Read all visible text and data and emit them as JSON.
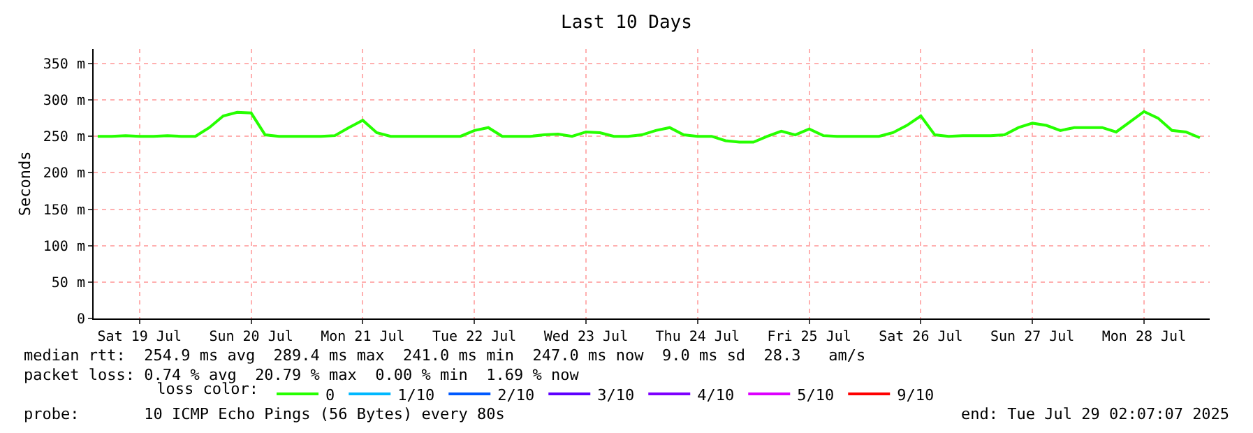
{
  "chart_data": {
    "type": "line",
    "title": "Last 10 Days",
    "ylabel": "Seconds",
    "legend_title": "loss color:",
    "legend": "bottom left",
    "grid": true,
    "marker": "none",
    "line_style": "solid",
    "x": [
      "2025-07-19T03:00",
      "2025-07-19T06:00",
      "2025-07-19T09:00",
      "2025-07-19T12:00",
      "2025-07-19T15:00",
      "2025-07-19T18:00",
      "2025-07-19T21:00",
      "2025-07-20T00:00",
      "2025-07-20T03:00",
      "2025-07-20T06:00",
      "2025-07-20T09:00",
      "2025-07-20T12:00",
      "2025-07-20T15:00",
      "2025-07-20T18:00",
      "2025-07-20T21:00",
      "2025-07-21T00:00",
      "2025-07-21T03:00",
      "2025-07-21T06:00",
      "2025-07-21T09:00",
      "2025-07-21T12:00",
      "2025-07-21T15:00",
      "2025-07-21T18:00",
      "2025-07-21T21:00",
      "2025-07-22T00:00",
      "2025-07-22T03:00",
      "2025-07-22T06:00",
      "2025-07-22T09:00",
      "2025-07-22T12:00",
      "2025-07-22T15:00",
      "2025-07-22T18:00",
      "2025-07-22T21:00",
      "2025-07-23T00:00",
      "2025-07-23T03:00",
      "2025-07-23T06:00",
      "2025-07-23T09:00",
      "2025-07-23T12:00",
      "2025-07-23T15:00",
      "2025-07-23T18:00",
      "2025-07-23T21:00",
      "2025-07-24T00:00",
      "2025-07-24T03:00",
      "2025-07-24T06:00",
      "2025-07-24T09:00",
      "2025-07-24T12:00",
      "2025-07-24T15:00",
      "2025-07-24T18:00",
      "2025-07-24T21:00",
      "2025-07-25T00:00",
      "2025-07-25T03:00",
      "2025-07-25T06:00",
      "2025-07-25T09:00",
      "2025-07-25T12:00",
      "2025-07-25T15:00",
      "2025-07-25T18:00",
      "2025-07-25T21:00",
      "2025-07-26T00:00",
      "2025-07-26T03:00",
      "2025-07-26T06:00",
      "2025-07-26T09:00",
      "2025-07-26T12:00",
      "2025-07-26T15:00",
      "2025-07-26T18:00",
      "2025-07-26T21:00",
      "2025-07-27T00:00",
      "2025-07-27T03:00",
      "2025-07-27T06:00",
      "2025-07-27T09:00",
      "2025-07-27T12:00",
      "2025-07-27T15:00",
      "2025-07-27T18:00",
      "2025-07-27T21:00",
      "2025-07-28T00:00",
      "2025-07-28T03:00",
      "2025-07-28T06:00",
      "2025-07-28T09:00",
      "2025-07-28T12:00",
      "2025-07-28T15:00",
      "2025-07-28T18:00",
      "2025-07-28T21:00",
      "2025-07-29T00:00"
    ],
    "series": [
      {
        "name": "0",
        "color": "#26ff00",
        "values": [
          250,
          250,
          251,
          250,
          250,
          251,
          250,
          250,
          262,
          278,
          283,
          282,
          252,
          250,
          250,
          250,
          250,
          251,
          262,
          272,
          255,
          250,
          250,
          250,
          250,
          250,
          250,
          258,
          262,
          250,
          250,
          250,
          252,
          253,
          250,
          256,
          255,
          250,
          250,
          252,
          258,
          262,
          252,
          250,
          250,
          244,
          242,
          242,
          250,
          257,
          252,
          260,
          251,
          250,
          250,
          250,
          250,
          255,
          265,
          278,
          252,
          250,
          251,
          251,
          251,
          252,
          262,
          268,
          265,
          258,
          262,
          262,
          262,
          256,
          270,
          284,
          275,
          258,
          256,
          248
        ]
      },
      {
        "name": "1/10",
        "color": "#00b8ff",
        "values": [
          null,
          null,
          null,
          null,
          null,
          null,
          null,
          null,
          null,
          null,
          null,
          null,
          null,
          null,
          null,
          null,
          null,
          null,
          null,
          null,
          null,
          null,
          null,
          null,
          null,
          null,
          null,
          null,
          null,
          null,
          null,
          null,
          null,
          null,
          null,
          null,
          null,
          null,
          null,
          null,
          null,
          null,
          null,
          null,
          null,
          null,
          null,
          null,
          null,
          null,
          null,
          null,
          null,
          null,
          null,
          null,
          null,
          null,
          null,
          null,
          null,
          null,
          null,
          null,
          null,
          null,
          null,
          null,
          null,
          null,
          null,
          null,
          null,
          null,
          null,
          null,
          null,
          null,
          null,
          null
        ]
      },
      {
        "name": "2/10",
        "color": "#0059ff",
        "values": [
          null,
          null,
          null,
          null,
          null,
          null,
          null,
          null,
          null,
          null,
          null,
          null,
          null,
          null,
          null,
          null,
          null,
          null,
          null,
          null,
          null,
          null,
          null,
          null,
          null,
          null,
          null,
          null,
          null,
          null,
          null,
          null,
          null,
          null,
          null,
          null,
          null,
          null,
          null,
          null,
          null,
          null,
          null,
          null,
          null,
          null,
          null,
          null,
          null,
          null,
          null,
          null,
          null,
          null,
          null,
          null,
          null,
          null,
          null,
          null,
          null,
          null,
          null,
          null,
          null,
          null,
          null,
          null,
          null,
          null,
          null,
          null,
          null,
          null,
          null,
          null,
          null,
          null,
          null,
          null
        ]
      },
      {
        "name": "3/10",
        "color": "#5e00ff",
        "values": [
          null,
          null,
          null,
          null,
          null,
          null,
          null,
          null,
          null,
          null,
          null,
          null,
          null,
          null,
          null,
          null,
          null,
          null,
          null,
          null,
          null,
          null,
          null,
          null,
          null,
          null,
          null,
          null,
          null,
          null,
          null,
          null,
          null,
          null,
          null,
          null,
          null,
          null,
          null,
          null,
          null,
          null,
          null,
          null,
          null,
          null,
          null,
          null,
          null,
          null,
          null,
          null,
          null,
          null,
          null,
          null,
          null,
          null,
          null,
          null,
          null,
          null,
          null,
          null,
          null,
          null,
          null,
          null,
          null,
          null,
          null,
          null,
          null,
          null,
          null,
          null,
          null,
          null,
          null,
          null
        ]
      },
      {
        "name": "4/10",
        "color": "#7e00ff",
        "values": [
          null,
          null,
          null,
          null,
          null,
          null,
          null,
          null,
          null,
          null,
          null,
          null,
          null,
          null,
          null,
          null,
          null,
          null,
          null,
          null,
          null,
          null,
          null,
          null,
          null,
          null,
          null,
          null,
          null,
          null,
          null,
          null,
          null,
          null,
          null,
          null,
          null,
          null,
          null,
          null,
          null,
          null,
          null,
          null,
          null,
          null,
          null,
          null,
          null,
          null,
          null,
          null,
          null,
          null,
          null,
          null,
          null,
          null,
          null,
          null,
          null,
          null,
          null,
          null,
          null,
          null,
          null,
          null,
          null,
          null,
          null,
          null,
          null,
          null,
          null,
          null,
          null,
          null,
          null,
          null
        ]
      },
      {
        "name": "5/10",
        "color": "#dd00ff",
        "values": [
          null,
          null,
          null,
          null,
          null,
          null,
          null,
          null,
          null,
          null,
          null,
          null,
          null,
          null,
          null,
          null,
          null,
          null,
          null,
          null,
          null,
          null,
          null,
          null,
          null,
          null,
          null,
          null,
          null,
          null,
          null,
          null,
          null,
          null,
          null,
          null,
          null,
          null,
          null,
          null,
          null,
          null,
          null,
          null,
          null,
          null,
          null,
          null,
          null,
          null,
          null,
          null,
          null,
          null,
          null,
          null,
          null,
          null,
          null,
          null,
          null,
          null,
          null,
          null,
          null,
          null,
          null,
          null,
          null,
          null,
          null,
          null,
          null,
          null,
          null,
          null,
          null,
          null,
          null,
          null
        ]
      },
      {
        "name": "9/10",
        "color": "#ff0000",
        "values": [
          null,
          null,
          null,
          null,
          null,
          null,
          null,
          null,
          null,
          null,
          null,
          null,
          null,
          null,
          null,
          null,
          null,
          null,
          null,
          null,
          null,
          null,
          null,
          null,
          null,
          null,
          null,
          null,
          null,
          null,
          null,
          null,
          null,
          null,
          null,
          null,
          null,
          null,
          null,
          null,
          null,
          null,
          null,
          null,
          null,
          null,
          null,
          null,
          null,
          null,
          null,
          null,
          null,
          null,
          null,
          null,
          null,
          null,
          null,
          null,
          null,
          null,
          null,
          null,
          null,
          null,
          null,
          null,
          null,
          null,
          null,
          null,
          null,
          null,
          null,
          null,
          null,
          null,
          null,
          null
        ]
      }
    ],
    "xlim": [
      "2025-07-19T02:07",
      "2025-07-29T02:07"
    ],
    "xticks": [
      {
        "value": "2025-07-19T12:00",
        "label": "Sat 19 Jul"
      },
      {
        "value": "2025-07-20T12:00",
        "label": "Sun 20 Jul"
      },
      {
        "value": "2025-07-21T12:00",
        "label": "Mon 21 Jul"
      },
      {
        "value": "2025-07-22T12:00",
        "label": "Tue 22 Jul"
      },
      {
        "value": "2025-07-23T12:00",
        "label": "Wed 23 Jul"
      },
      {
        "value": "2025-07-24T12:00",
        "label": "Thu 24 Jul"
      },
      {
        "value": "2025-07-25T12:00",
        "label": "Fri 25 Jul"
      },
      {
        "value": "2025-07-26T12:00",
        "label": "Sat 26 Jul"
      },
      {
        "value": "2025-07-27T12:00",
        "label": "Sun 27 Jul"
      },
      {
        "value": "2025-07-28T12:00",
        "label": "Mon 28 Jul"
      }
    ],
    "ylim": [
      0,
      370
    ],
    "yticks": [
      0,
      {
        "value": 50,
        "label": "50 m"
      },
      {
        "value": 100,
        "label": "100 m"
      },
      {
        "value": 150,
        "label": "150 m"
      },
      {
        "value": 200,
        "label": "200 m"
      },
      {
        "value": 250,
        "label": "250 m"
      },
      {
        "value": 300,
        "label": "300 m"
      },
      {
        "value": 350,
        "label": "350 m"
      }
    ],
    "annotations": [
      "median rtt:  254.9 ms avg  289.4 ms max  241.0 ms min  247.0 ms now  9.0 ms sd  28.3   am/s",
      "packet loss: 0.74 % avg  20.79 % max  0.00 % min  1.69 % now",
      "probe:       10 ICMP Echo Pings (56 Bytes) every 80s",
      "end: Tue Jul 29 02:07:07 2025"
    ]
  }
}
